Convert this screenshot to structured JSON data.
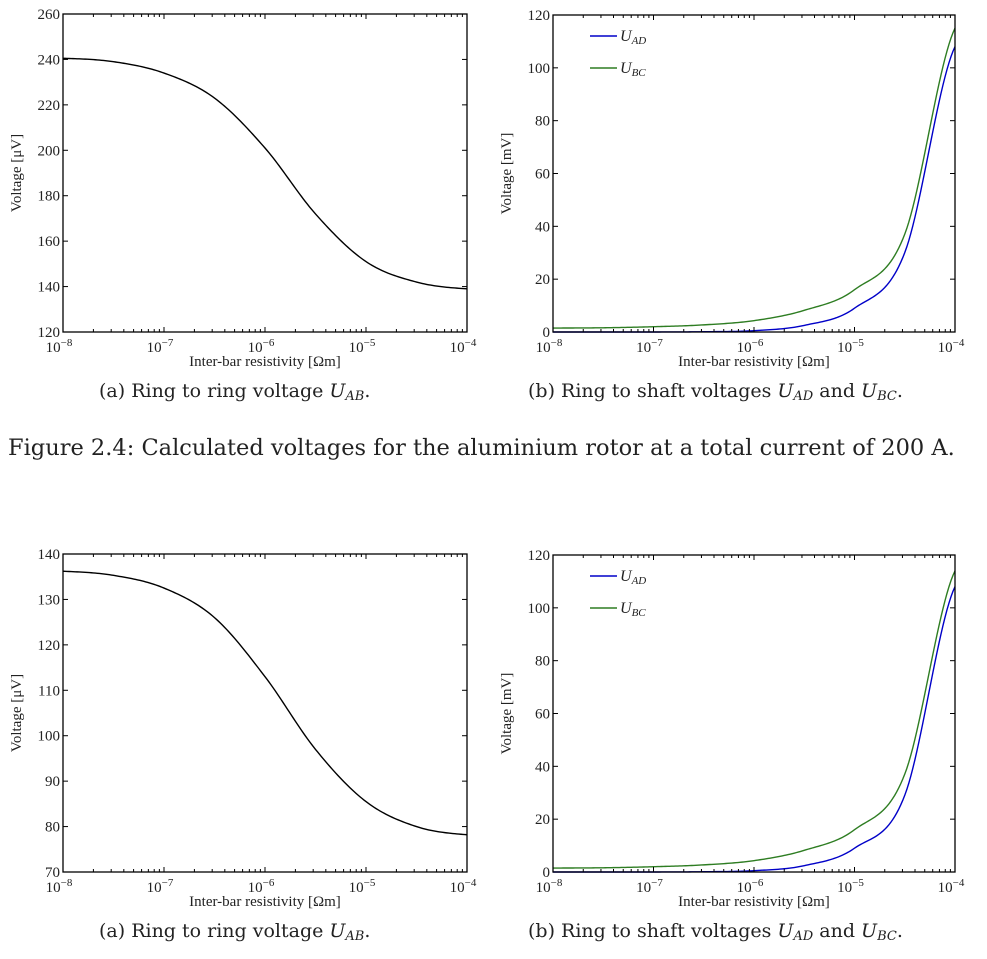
{
  "figure_caption": "Figure 2.4: Calculated voltages for the aluminium rotor at a total current of 200 A.",
  "colors": {
    "axis": "#000000",
    "curve": "#000000",
    "U_AD": "#0000c8",
    "U_BC": "#2e7d22"
  },
  "chart_data": [
    {
      "type": "line",
      "subcaption": {
        "prefix": "(a) Ring to ring voltage ",
        "var": "U",
        "sub": "AB",
        "suffix": "."
      },
      "xlabel": "Inter-bar resistivity [Ωm]",
      "ylabel": "Voltage [μV]",
      "xscale": "log",
      "xlim": [
        1e-08,
        0.0001
      ],
      "ylim": [
        120,
        260
      ],
      "xticks": [
        1e-08,
        1e-07,
        1e-06,
        1e-05,
        0.0001
      ],
      "xtick_labels": [
        {
          "b": "10",
          "e": "−8"
        },
        {
          "b": "10",
          "e": "−7"
        },
        {
          "b": "10",
          "e": "−6"
        },
        {
          "b": "10",
          "e": "−5"
        },
        {
          "b": "10",
          "e": "−4"
        }
      ],
      "yticks": [
        120,
        140,
        160,
        180,
        200,
        220,
        240,
        260
      ],
      "ytick_labels": [
        "120",
        "140",
        "160",
        "180",
        "200",
        "220",
        "240",
        "260"
      ],
      "grid": false,
      "x": [
        1e-08,
        3.16e-08,
        1e-07,
        3.16e-07,
        1e-06,
        3.16e-06,
        1e-05,
        3.16e-05,
        0.0001
      ],
      "series": [
        {
          "name": "U_AB",
          "color": "#000000",
          "values": [
            240.5,
            239,
            234,
            223,
            201,
            172,
            151,
            142,
            139
          ]
        }
      ]
    },
    {
      "type": "line",
      "subcaption": {
        "prefix": "(b) Ring to shaft voltages ",
        "var": "U",
        "sub": "AD",
        "mid": " and ",
        "var2": "U",
        "sub2": "BC",
        "suffix": "."
      },
      "xlabel": "Inter-bar resistivity [Ωm]",
      "ylabel": "Voltage [mV]",
      "xscale": "log",
      "xlim": [
        1e-08,
        0.0001
      ],
      "ylim": [
        0,
        120
      ],
      "xticks": [
        1e-08,
        1e-07,
        1e-06,
        1e-05,
        0.0001
      ],
      "xtick_labels": [
        {
          "b": "10",
          "e": "−8"
        },
        {
          "b": "10",
          "e": "−7"
        },
        {
          "b": "10",
          "e": "−6"
        },
        {
          "b": "10",
          "e": "−5"
        },
        {
          "b": "10",
          "e": "−4"
        }
      ],
      "yticks": [
        0,
        20,
        40,
        60,
        80,
        100,
        120
      ],
      "ytick_labels": [
        "0",
        "20",
        "40",
        "60",
        "80",
        "100",
        "120"
      ],
      "grid": false,
      "legend": {
        "placement": "top-left",
        "entries": [
          {
            "var": "U",
            "sub": "AD"
          },
          {
            "var": "U",
            "sub": "BC"
          }
        ]
      },
      "x": [
        1e-08,
        3.16e-08,
        1e-07,
        3.16e-07,
        1e-06,
        3.16e-06,
        1e-05,
        3.16e-05,
        0.0001
      ],
      "series": [
        {
          "name": "U_AD",
          "color": "#0000c8",
          "values": [
            0,
            0,
            0,
            0.1,
            0.5,
            2.5,
            9,
            30,
            108
          ]
        },
        {
          "name": "U_BC",
          "color": "#2e7d22",
          "values": [
            1.5,
            1.6,
            2,
            2.7,
            4.3,
            8.2,
            16,
            37,
            115
          ]
        }
      ]
    },
    {
      "type": "line",
      "subcaption": {
        "prefix": "(a) Ring to ring voltage ",
        "var": "U",
        "sub": "AB",
        "suffix": "."
      },
      "xlabel": "Inter-bar resistivity [Ωm]",
      "ylabel": "Voltage [μV]",
      "xscale": "log",
      "xlim": [
        1e-08,
        0.0001
      ],
      "ylim": [
        70,
        140
      ],
      "xticks": [
        1e-08,
        1e-07,
        1e-06,
        1e-05,
        0.0001
      ],
      "xtick_labels": [
        {
          "b": "10",
          "e": "−8"
        },
        {
          "b": "10",
          "e": "−7"
        },
        {
          "b": "10",
          "e": "−6"
        },
        {
          "b": "10",
          "e": "−5"
        },
        {
          "b": "10",
          "e": "−4"
        }
      ],
      "yticks": [
        70,
        80,
        90,
        100,
        110,
        120,
        130,
        140
      ],
      "ytick_labels": [
        "70",
        "80",
        "90",
        "100",
        "110",
        "120",
        "130",
        "140"
      ],
      "grid": false,
      "x": [
        1e-08,
        3.16e-08,
        1e-07,
        3.16e-07,
        1e-06,
        3.16e-06,
        1e-05,
        3.16e-05,
        0.0001
      ],
      "series": [
        {
          "name": "U_AB",
          "color": "#000000",
          "values": [
            136.2,
            135.3,
            132.5,
            126,
            113,
            97,
            85.5,
            80,
            78.2
          ]
        }
      ]
    },
    {
      "type": "line",
      "subcaption": {
        "prefix": "(b) Ring to shaft voltages ",
        "var": "U",
        "sub": "AD",
        "mid": " and ",
        "var2": "U",
        "sub2": "BC",
        "suffix": "."
      },
      "xlabel": "Inter-bar resistivity [Ωm]",
      "ylabel": "Voltage [mV]",
      "xscale": "log",
      "xlim": [
        1e-08,
        0.0001
      ],
      "ylim": [
        0,
        120
      ],
      "xticks": [
        1e-08,
        1e-07,
        1e-06,
        1e-05,
        0.0001
      ],
      "xtick_labels": [
        {
          "b": "10",
          "e": "−8"
        },
        {
          "b": "10",
          "e": "−7"
        },
        {
          "b": "10",
          "e": "−6"
        },
        {
          "b": "10",
          "e": "−5"
        },
        {
          "b": "10",
          "e": "−4"
        }
      ],
      "yticks": [
        0,
        20,
        40,
        60,
        80,
        100,
        120
      ],
      "ytick_labels": [
        "0",
        "20",
        "40",
        "60",
        "80",
        "100",
        "120"
      ],
      "grid": false,
      "legend": {
        "placement": "top-left",
        "entries": [
          {
            "var": "U",
            "sub": "AD"
          },
          {
            "var": "U",
            "sub": "BC"
          }
        ]
      },
      "x": [
        1e-08,
        3.16e-08,
        1e-07,
        3.16e-07,
        1e-06,
        3.16e-06,
        1e-05,
        3.16e-05,
        0.0001
      ],
      "series": [
        {
          "name": "U_AD",
          "color": "#0000c8",
          "values": [
            0,
            0,
            0,
            0.1,
            0.5,
            2.4,
            9,
            29,
            108
          ]
        },
        {
          "name": "U_BC",
          "color": "#2e7d22",
          "values": [
            1.5,
            1.6,
            2,
            2.7,
            4.3,
            8.2,
            16,
            37,
            114
          ]
        }
      ]
    }
  ]
}
